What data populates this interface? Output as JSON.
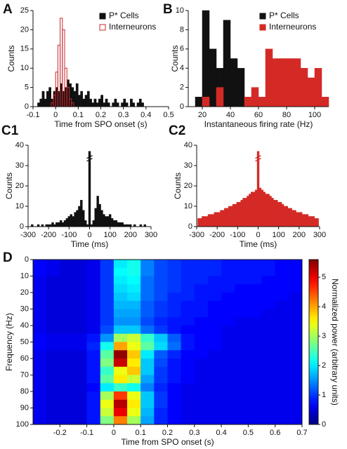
{
  "chart_data": [
    {
      "panel": "A",
      "type": "histogram",
      "xlabel": "Time from SPO onset (s)",
      "ylabel": "Counts",
      "xlim": [
        -0.1,
        0.5
      ],
      "ylim": [
        0,
        25
      ],
      "xticks": [
        -0.1,
        0,
        0.1,
        0.2,
        0.3,
        0.4,
        0.5
      ],
      "yticks": [
        0,
        5,
        10,
        15,
        20,
        25
      ],
      "legend": "upper right",
      "bins": [
        -0.1,
        -0.09,
        -0.08,
        -0.07,
        -0.06,
        -0.05,
        -0.04,
        -0.03,
        -0.02,
        -0.01,
        0,
        0.01,
        0.02,
        0.03,
        0.04,
        0.05,
        0.06,
        0.07,
        0.08,
        0.09,
        0.1,
        0.11,
        0.12,
        0.13,
        0.14,
        0.15,
        0.16,
        0.17,
        0.18,
        0.19,
        0.2,
        0.21,
        0.22,
        0.23,
        0.24,
        0.25,
        0.26,
        0.27,
        0.28,
        0.29,
        0.3,
        0.31,
        0.32,
        0.33,
        0.34,
        0.35,
        0.36,
        0.37,
        0.38,
        0.39,
        0.4
      ],
      "series": [
        {
          "name": "P* Cells",
          "color": "#111111",
          "filled": true,
          "values": [
            0,
            0,
            1,
            2,
            4,
            2,
            4,
            5,
            2,
            4,
            5,
            4,
            6,
            4,
            5,
            7,
            6,
            5,
            4,
            6,
            3,
            4,
            2,
            3,
            4,
            2,
            1,
            2,
            1,
            2,
            3,
            1,
            2,
            1,
            0,
            1,
            2,
            1,
            0,
            1,
            2,
            1,
            0,
            2,
            1,
            0,
            1,
            2,
            1,
            0
          ]
        },
        {
          "name": "Interneurons",
          "color": "#c8282d",
          "filled": false,
          "values": [
            0,
            0,
            0,
            0,
            0,
            0,
            0,
            0,
            1,
            3,
            9,
            16,
            23,
            20,
            10,
            5,
            2,
            1,
            0,
            0,
            0,
            0,
            0,
            0,
            0,
            0,
            0,
            0,
            0,
            0,
            0,
            0,
            0,
            0,
            0,
            0,
            0,
            0,
            0,
            0,
            0,
            0,
            0,
            0,
            0,
            0,
            0,
            0,
            0,
            0
          ]
        }
      ]
    },
    {
      "panel": "B",
      "type": "histogram",
      "xlabel": "Instantaneous firing rate (Hz)",
      "ylabel": "Counts",
      "xlim": [
        10,
        110
      ],
      "ylim": [
        0,
        10
      ],
      "xticks": [
        20,
        40,
        60,
        80,
        100
      ],
      "yticks": [
        0,
        2,
        4,
        6,
        8,
        10
      ],
      "legend": "upper right",
      "bins": [
        15,
        20,
        25,
        30,
        35,
        40,
        45,
        50,
        55,
        60,
        65,
        70,
        75,
        80,
        85,
        90,
        95,
        100,
        105,
        110
      ],
      "series": [
        {
          "name": "P* Cells",
          "color": "#111111",
          "filled": true,
          "values": [
            1,
            10,
            6,
            4,
            9,
            5,
            4,
            0,
            0,
            0,
            0,
            0,
            0,
            0,
            0,
            0,
            0,
            0,
            0
          ]
        },
        {
          "name": "Interneurons",
          "color": "#d42a26",
          "filled": true,
          "values": [
            0,
            1,
            0,
            2,
            0,
            0,
            0,
            1,
            2,
            1,
            6,
            5,
            5,
            5,
            5,
            4,
            3,
            4,
            1
          ]
        }
      ]
    },
    {
      "panel": "C1",
      "type": "histogram",
      "xlabel": "Time (ms)",
      "ylabel": "Counts",
      "xlim": [
        -300,
        300
      ],
      "ylim": [
        0,
        40
      ],
      "xticks": [
        -300,
        -200,
        -100,
        0,
        100,
        200,
        300
      ],
      "yticks": [
        0,
        10,
        20,
        30,
        40
      ],
      "axis_break": true,
      "bins": [
        -295,
        -285,
        -275,
        -265,
        -255,
        -245,
        -235,
        -225,
        -215,
        -205,
        -195,
        -185,
        -175,
        -165,
        -155,
        -145,
        -135,
        -125,
        -115,
        -105,
        -95,
        -85,
        -75,
        -65,
        -55,
        -45,
        -35,
        -25,
        -15,
        -5,
        5,
        15,
        25,
        35,
        45,
        55,
        65,
        75,
        85,
        95,
        105,
        115,
        125,
        135,
        145,
        155,
        165,
        175,
        185,
        195,
        205,
        215,
        225,
        235,
        245,
        255,
        265,
        275,
        285,
        295
      ],
      "series": [
        {
          "color": "#111111",
          "filled": true,
          "values": [
            0,
            1,
            0,
            0,
            1,
            0,
            1,
            0,
            1,
            1,
            1,
            2,
            1,
            2,
            2,
            3,
            2,
            3,
            4,
            5,
            6,
            5,
            7,
            8,
            10,
            13,
            8,
            3,
            1,
            37,
            1,
            3,
            9,
            15,
            11,
            8,
            6,
            5,
            5,
            6,
            4,
            3,
            3,
            2,
            2,
            2,
            1,
            1,
            1,
            1,
            0,
            1,
            0,
            0,
            1,
            0,
            1,
            0,
            0
          ]
        }
      ]
    },
    {
      "panel": "C2",
      "type": "histogram",
      "xlabel": "Time (ms)",
      "ylabel": "Counts",
      "xlim": [
        -300,
        300
      ],
      "ylim": [
        0,
        40
      ],
      "xticks": [
        -300,
        -200,
        -100,
        0,
        100,
        200,
        300
      ],
      "yticks": [
        0,
        10,
        20,
        30,
        40
      ],
      "axis_break": true,
      "bins": [
        -295,
        -285,
        -275,
        -265,
        -255,
        -245,
        -235,
        -225,
        -215,
        -205,
        -195,
        -185,
        -175,
        -165,
        -155,
        -145,
        -135,
        -125,
        -115,
        -105,
        -95,
        -85,
        -75,
        -65,
        -55,
        -45,
        -35,
        -25,
        -15,
        -5,
        5,
        15,
        25,
        35,
        45,
        55,
        65,
        75,
        85,
        95,
        105,
        115,
        125,
        135,
        145,
        155,
        165,
        175,
        185,
        195,
        205,
        215,
        225,
        235,
        245,
        255,
        265,
        275,
        285,
        295
      ],
      "series": [
        {
          "color": "#d42a26",
          "filled": true,
          "values": [
            4,
            4,
            5,
            5,
            5,
            6,
            6,
            6,
            7,
            7,
            7,
            8,
            8,
            9,
            9,
            10,
            10,
            11,
            11,
            12,
            12,
            13,
            14,
            14,
            15,
            16,
            17,
            17,
            18,
            37,
            19,
            18,
            17,
            16,
            16,
            15,
            14,
            13,
            13,
            12,
            12,
            11,
            10,
            10,
            9,
            9,
            8,
            8,
            7,
            7,
            7,
            6,
            6,
            6,
            5,
            5,
            5,
            4,
            4
          ]
        }
      ]
    },
    {
      "panel": "D",
      "type": "heatmap",
      "xlabel": "Time from SPO onset (s)",
      "ylabel": "Frequency (Hz)",
      "colorbar_label": "Normalized power (arbitrary units)",
      "xlim": [
        -0.3,
        0.7
      ],
      "ylim": [
        0,
        100
      ],
      "y_inverted": true,
      "xticks": [
        -0.2,
        -0.1,
        0,
        0.1,
        0.2,
        0.3,
        0.4,
        0.5,
        0.6,
        0.7
      ],
      "yticks": [
        0,
        10,
        20,
        30,
        40,
        50,
        60,
        70,
        80,
        90,
        100
      ],
      "clim": [
        0,
        5.6
      ],
      "cticks": [
        0,
        1,
        2,
        3,
        4,
        5
      ],
      "colormap": "jet",
      "x": [
        -0.275,
        -0.225,
        -0.175,
        -0.125,
        -0.075,
        -0.025,
        0.025,
        0.075,
        0.125,
        0.175,
        0.225,
        0.275,
        0.325,
        0.375,
        0.425,
        0.475,
        0.525,
        0.575,
        0.625,
        0.675
      ],
      "y": [
        2.5,
        7.5,
        12.5,
        17.5,
        22.5,
        27.5,
        32.5,
        37.5,
        42.5,
        47.5,
        52.5,
        57.5,
        62.5,
        67.5,
        72.5,
        77.5,
        82.5,
        87.5,
        92.5,
        97.5
      ],
      "z": [
        [
          0.7,
          0.6,
          0.5,
          0.5,
          0.6,
          1.0,
          2.0,
          2.2,
          1.4,
          1.1,
          1.0,
          0.9,
          0.9,
          0.9,
          0.8,
          0.8,
          0.8,
          0.8,
          0.7,
          0.7
        ],
        [
          0.7,
          0.6,
          0.5,
          0.5,
          0.6,
          1.0,
          2.1,
          2.2,
          1.4,
          1.1,
          1.0,
          0.9,
          0.9,
          0.9,
          0.8,
          0.8,
          0.8,
          0.8,
          0.7,
          0.7
        ],
        [
          0.6,
          0.5,
          0.5,
          0.5,
          0.6,
          1.0,
          2.0,
          2.1,
          1.3,
          1.1,
          1.0,
          0.9,
          0.9,
          0.8,
          0.8,
          0.8,
          0.8,
          0.7,
          0.7,
          0.7
        ],
        [
          0.6,
          0.5,
          0.5,
          0.5,
          0.6,
          1.0,
          1.9,
          2.0,
          1.3,
          1.1,
          1.0,
          0.9,
          0.8,
          0.8,
          0.8,
          0.7,
          0.7,
          0.7,
          0.7,
          0.7
        ],
        [
          0.6,
          0.5,
          0.5,
          0.5,
          0.6,
          1.0,
          1.8,
          1.9,
          1.3,
          1.1,
          0.9,
          0.9,
          0.8,
          0.8,
          0.7,
          0.7,
          0.7,
          0.7,
          0.7,
          0.6
        ],
        [
          0.6,
          0.5,
          0.5,
          0.5,
          0.6,
          1.0,
          1.7,
          1.7,
          1.2,
          1.0,
          0.9,
          0.8,
          0.8,
          0.7,
          0.7,
          0.7,
          0.7,
          0.7,
          0.6,
          0.6
        ],
        [
          0.6,
          0.5,
          0.5,
          0.5,
          0.6,
          1.0,
          1.6,
          1.6,
          1.2,
          1.0,
          0.9,
          0.8,
          0.8,
          0.7,
          0.7,
          0.7,
          0.7,
          0.6,
          0.6,
          0.6
        ],
        [
          0.6,
          0.5,
          0.5,
          0.5,
          0.6,
          1.0,
          1.5,
          1.5,
          1.1,
          0.9,
          0.8,
          0.8,
          0.7,
          0.7,
          0.7,
          0.6,
          0.6,
          0.6,
          0.6,
          0.6
        ],
        [
          0.6,
          0.5,
          0.5,
          0.5,
          0.6,
          1.1,
          1.8,
          1.8,
          1.3,
          1.0,
          0.8,
          0.7,
          0.7,
          0.7,
          0.6,
          0.6,
          0.6,
          0.6,
          0.6,
          0.6
        ],
        [
          0.7,
          0.6,
          0.6,
          0.6,
          0.8,
          1.5,
          3.0,
          3.2,
          2.4,
          1.8,
          1.2,
          0.8,
          0.7,
          0.7,
          0.6,
          0.6,
          0.6,
          0.6,
          0.6,
          0.6
        ],
        [
          0.7,
          0.6,
          0.6,
          0.6,
          0.9,
          2.2,
          4.0,
          3.4,
          2.6,
          1.9,
          1.3,
          0.8,
          0.7,
          0.7,
          0.6,
          0.6,
          0.6,
          0.6,
          0.6,
          0.6
        ],
        [
          0.6,
          0.5,
          0.5,
          0.5,
          0.8,
          2.6,
          5.5,
          3.8,
          2.0,
          1.2,
          0.9,
          0.7,
          0.7,
          0.6,
          0.6,
          0.6,
          0.6,
          0.6,
          0.6,
          0.6
        ],
        [
          0.6,
          0.5,
          0.5,
          0.5,
          0.8,
          2.8,
          5.2,
          3.6,
          1.8,
          1.1,
          0.8,
          0.7,
          0.6,
          0.6,
          0.6,
          0.6,
          0.6,
          0.6,
          0.6,
          0.6
        ],
        [
          0.6,
          0.5,
          0.5,
          0.5,
          0.8,
          2.4,
          3.4,
          3.8,
          1.8,
          1.0,
          0.8,
          0.7,
          0.6,
          0.6,
          0.6,
          0.6,
          0.6,
          0.6,
          0.6,
          0.6
        ],
        [
          0.6,
          0.5,
          0.5,
          0.5,
          0.8,
          2.6,
          3.6,
          3.2,
          1.6,
          1.0,
          0.8,
          0.7,
          0.6,
          0.6,
          0.6,
          0.6,
          0.6,
          0.6,
          0.6,
          0.6
        ],
        [
          0.6,
          0.5,
          0.5,
          0.5,
          0.7,
          2.0,
          2.4,
          2.2,
          1.4,
          0.9,
          0.7,
          0.6,
          0.6,
          0.6,
          0.6,
          0.6,
          0.6,
          0.6,
          0.6,
          0.6
        ],
        [
          0.6,
          0.5,
          0.5,
          0.5,
          0.8,
          3.0,
          4.6,
          3.4,
          1.8,
          1.0,
          0.7,
          0.6,
          0.6,
          0.6,
          0.6,
          0.6,
          0.6,
          0.6,
          0.6,
          0.6
        ],
        [
          0.6,
          0.5,
          0.5,
          0.5,
          0.8,
          3.4,
          5.3,
          3.6,
          1.8,
          1.0,
          0.7,
          0.6,
          0.6,
          0.6,
          0.6,
          0.6,
          0.6,
          0.6,
          0.6,
          0.6
        ],
        [
          0.6,
          0.5,
          0.5,
          0.5,
          0.8,
          3.2,
          5.0,
          3.4,
          1.7,
          0.9,
          0.7,
          0.6,
          0.6,
          0.6,
          0.6,
          0.6,
          0.6,
          0.6,
          0.6,
          0.6
        ],
        [
          0.6,
          0.5,
          0.5,
          0.5,
          0.8,
          2.8,
          4.2,
          3.0,
          1.6,
          0.9,
          0.7,
          0.6,
          0.6,
          0.6,
          0.6,
          0.6,
          0.6,
          0.6,
          0.6,
          0.6
        ]
      ]
    }
  ]
}
